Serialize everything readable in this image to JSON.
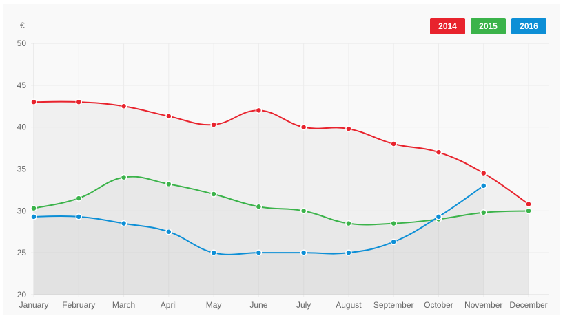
{
  "chart_data": {
    "type": "line",
    "unit_label": "€",
    "categories": [
      "January",
      "February",
      "March",
      "April",
      "May",
      "June",
      "July",
      "August",
      "September",
      "October",
      "November",
      "December"
    ],
    "ylim": [
      20,
      50
    ],
    "yticks": [
      "20",
      "25",
      "30",
      "35",
      "40",
      "45",
      "50"
    ],
    "grid": true,
    "legend_position": "top-right",
    "series": [
      {
        "name": "2014",
        "color": "#e8232d",
        "values": [
          43.0,
          43.0,
          42.5,
          41.3,
          40.3,
          42.0,
          40.0,
          39.8,
          38.0,
          37.0,
          34.5,
          30.8
        ]
      },
      {
        "name": "2015",
        "color": "#3bb34a",
        "values": [
          30.3,
          31.5,
          34.0,
          33.2,
          32.0,
          30.5,
          30.0,
          28.5,
          28.5,
          29.0,
          29.8,
          30.0
        ]
      },
      {
        "name": "2016",
        "color": "#0d8fd6",
        "values": [
          29.3,
          29.3,
          28.5,
          27.5,
          25.0,
          25.0,
          25.0,
          25.0,
          26.3,
          29.3,
          33.0,
          null
        ]
      }
    ]
  }
}
